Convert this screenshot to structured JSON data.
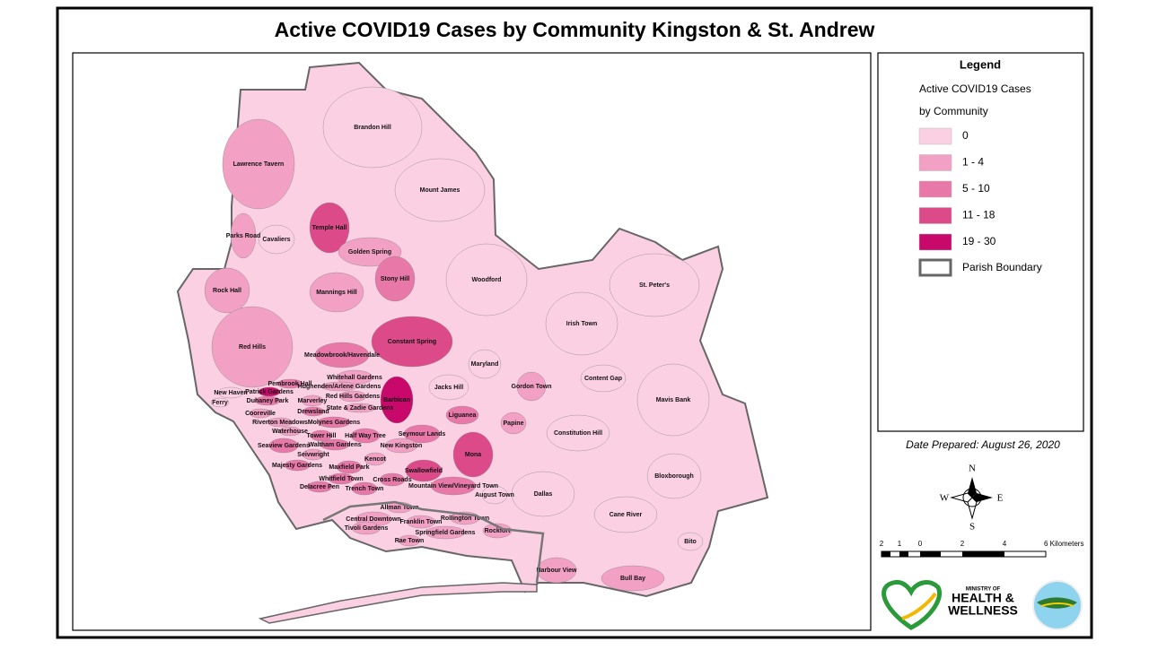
{
  "title": "Active COVID19 Cases by Community Kingston & St. Andrew",
  "legend": {
    "title": "Legend",
    "subtitle": [
      "Active COVID19 Cases",
      "by Community"
    ],
    "classes": [
      {
        "label": "0",
        "color": "#fcd0e3"
      },
      {
        "label": "1 - 4",
        "color": "#f2a0c4"
      },
      {
        "label": "5 - 10",
        "color": "#e878a8"
      },
      {
        "label": "11 - 18",
        "color": "#dc4a8a"
      },
      {
        "label": "19 - 30",
        "color": "#c8086a"
      }
    ],
    "boundary": "Parish Boundary"
  },
  "date": "Date Prepared: August 26, 2020",
  "compass": [
    "N",
    "E",
    "S",
    "W"
  ],
  "scale": [
    "2",
    "1",
    "0",
    "2",
    "4",
    "6 Kilometers"
  ],
  "logo": [
    "MINISTRY OF",
    "HEALTH &",
    "WELLNESS"
  ],
  "communities": [
    {
      "name": "Brandon Hill",
      "color": "#fcd0e3"
    },
    {
      "name": "Lawrence Tavern",
      "color": "#f2a0c4"
    },
    {
      "name": "Mount James",
      "color": "#fcd0e3"
    },
    {
      "name": "Temple Hall",
      "color": "#dc4a8a"
    },
    {
      "name": "Parks Road",
      "color": "#f2a0c4"
    },
    {
      "name": "Cavaliers",
      "color": "#fcd0e3"
    },
    {
      "name": "Golden Spring",
      "color": "#f2a0c4"
    },
    {
      "name": "Stony Hill",
      "color": "#e878a8"
    },
    {
      "name": "Woodford",
      "color": "#fcd0e3"
    },
    {
      "name": "St. Peter's",
      "color": "#fcd0e3"
    },
    {
      "name": "Rock Hall",
      "color": "#f2a0c4"
    },
    {
      "name": "Mannings Hill",
      "color": "#f2a0c4"
    },
    {
      "name": "Irish Town",
      "color": "#fcd0e3"
    },
    {
      "name": "Constant Spring",
      "color": "#dc4a8a"
    },
    {
      "name": "Red Hills",
      "color": "#f2a0c4"
    },
    {
      "name": "Meadowbrook/Havendale",
      "color": "#e878a8"
    },
    {
      "name": "Maryland",
      "color": "#fcd0e3"
    },
    {
      "name": "Content Gap",
      "color": "#fcd0e3"
    },
    {
      "name": "Whitehall Gardens",
      "color": "#f2a0c4"
    },
    {
      "name": "Pembrook Hall",
      "color": "#e878a8"
    },
    {
      "name": "Gordon Town",
      "color": "#f2a0c4"
    },
    {
      "name": "Jacks Hill",
      "color": "#fcd0e3"
    },
    {
      "name": "Hughenden/Arlene Gardens",
      "color": "#f2a0c4"
    },
    {
      "name": "Patrick Gardens",
      "color": "#c8086a"
    },
    {
      "name": "New Haven",
      "color": "#fcd0e3"
    },
    {
      "name": "Red Hills Gardens",
      "color": "#f2a0c4"
    },
    {
      "name": "Barbican",
      "color": "#c8086a"
    },
    {
      "name": "Mavis Bank",
      "color": "#fcd0e3"
    },
    {
      "name": "Duhaney Park",
      "color": "#e878a8"
    },
    {
      "name": "Ferry",
      "color": "#fcd0e3"
    },
    {
      "name": "Marverley",
      "color": "#f2a0c4"
    },
    {
      "name": "State & Zadie Gardens",
      "color": "#f2a0c4"
    },
    {
      "name": "Drewsland",
      "color": "#e878a8"
    },
    {
      "name": "Cooreville",
      "color": "#f2a0c4"
    },
    {
      "name": "Liguanea",
      "color": "#e878a8"
    },
    {
      "name": "Molynes Gardens",
      "color": "#e878a8"
    },
    {
      "name": "Riverton Meadows",
      "color": "#f2a0c4"
    },
    {
      "name": "Papine",
      "color": "#f2a0c4"
    },
    {
      "name": "Waterhouse",
      "color": "#f2a0c4"
    },
    {
      "name": "Seymour Lands",
      "color": "#e878a8"
    },
    {
      "name": "Constitution Hill",
      "color": "#fcd0e3"
    },
    {
      "name": "Tower Hill",
      "color": "#e878a8"
    },
    {
      "name": "Half Way Tree",
      "color": "#e878a8"
    },
    {
      "name": "Seaview Gardens",
      "color": "#e878a8"
    },
    {
      "name": "Waltham Gardens",
      "color": "#e878a8"
    },
    {
      "name": "New Kingston",
      "color": "#f2a0c4"
    },
    {
      "name": "Seivwright",
      "color": "#f2a0c4"
    },
    {
      "name": "Mona",
      "color": "#dc4a8a"
    },
    {
      "name": "Kencot",
      "color": "#f2a0c4"
    },
    {
      "name": "Majesty Gardens",
      "color": "#e878a8"
    },
    {
      "name": "Maxfield Park",
      "color": "#e878a8"
    },
    {
      "name": "Swallowfield",
      "color": "#dc4a8a"
    },
    {
      "name": "Whitfield Town",
      "color": "#e878a8"
    },
    {
      "name": "Cross Roads",
      "color": "#e878a8"
    },
    {
      "name": "Bloxborough",
      "color": "#fcd0e3"
    },
    {
      "name": "Delacree Pen",
      "color": "#e878a8"
    },
    {
      "name": "Trench Town",
      "color": "#e878a8"
    },
    {
      "name": "Mountain View/Vineyard Town",
      "color": "#e878a8"
    },
    {
      "name": "August Town",
      "color": "#fcd0e3"
    },
    {
      "name": "Dallas",
      "color": "#fcd0e3"
    },
    {
      "name": "Allman Town",
      "color": "#f2a0c4"
    },
    {
      "name": "Cane River",
      "color": "#fcd0e3"
    },
    {
      "name": "Central Downtown",
      "color": "#f2a0c4"
    },
    {
      "name": "Franklin Town",
      "color": "#f2a0c4"
    },
    {
      "name": "Rollington Town",
      "color": "#f2a0c4"
    },
    {
      "name": "Tivoli Gardens",
      "color": "#f2a0c4"
    },
    {
      "name": "Springfield Gardens",
      "color": "#f2a0c4"
    },
    {
      "name": "Rockfort",
      "color": "#f2a0c4"
    },
    {
      "name": "Rae Town",
      "color": "#f2a0c4"
    },
    {
      "name": "Bito",
      "color": "#fcd0e3"
    },
    {
      "name": "Harbour View",
      "color": "#f2a0c4"
    },
    {
      "name": "Bull Bay",
      "color": "#f2a0c4"
    }
  ]
}
